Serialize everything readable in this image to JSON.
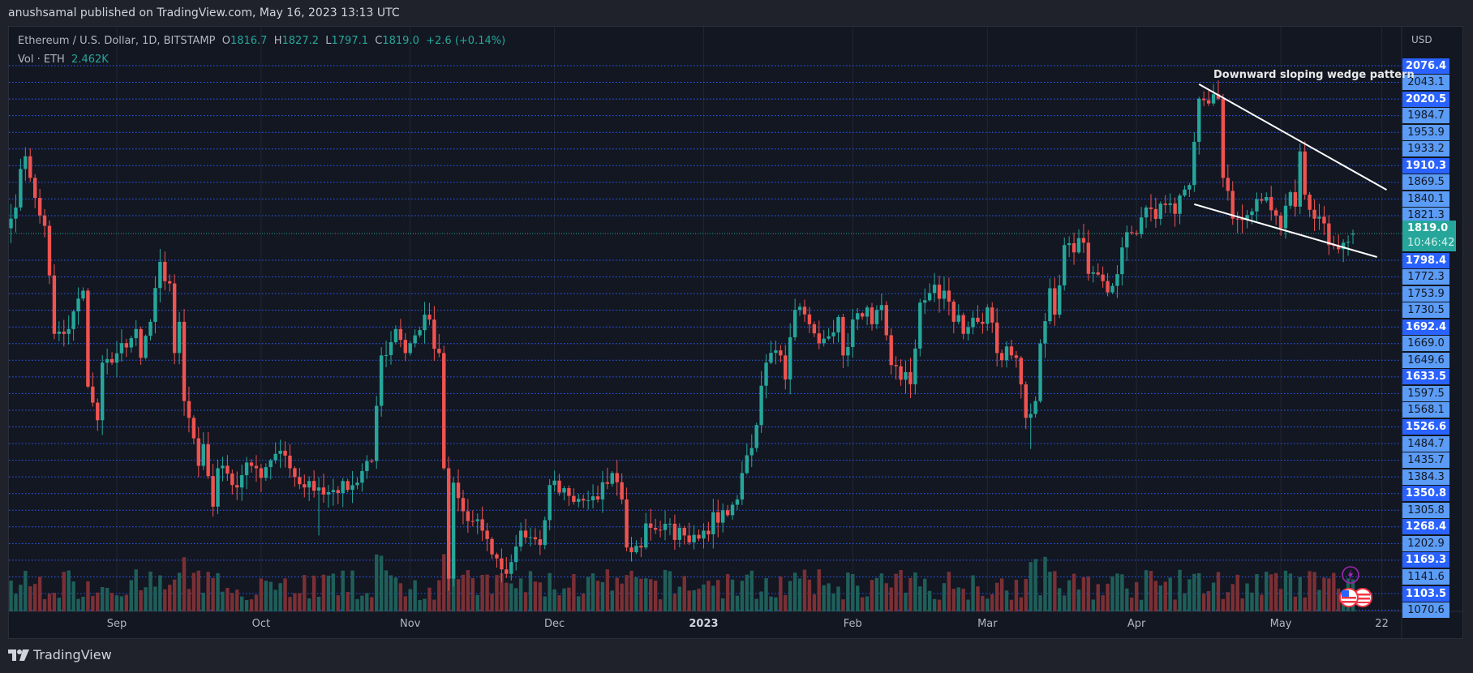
{
  "header": {
    "published": "anushsamal published on TradingView.com, May 16, 2023 13:13 UTC"
  },
  "legend": {
    "symbol": "Ethereum / U.S. Dollar, 1D, BITSTAMP",
    "o_label": "O",
    "o": "1816.7",
    "h_label": "H",
    "h": "1827.2",
    "l_label": "L",
    "l": "1797.1",
    "c_label": "C",
    "c": "1819.0",
    "change": "+2.6 (+0.14%)",
    "vol_label": "Vol · ETH",
    "vol": "2.462K"
  },
  "price_axis": {
    "currency": "USD",
    "labels": [
      {
        "v": "2076.4",
        "bold": true
      },
      {
        "v": "2043.1",
        "bold": false
      },
      {
        "v": "2020.5",
        "bold": true
      },
      {
        "v": "1984.7",
        "bold": false
      },
      {
        "v": "1953.9",
        "bold": false
      },
      {
        "v": "1933.2",
        "bold": false
      },
      {
        "v": "1910.3",
        "bold": true
      },
      {
        "v": "1869.5",
        "bold": false
      },
      {
        "v": "1840.1",
        "bold": false
      },
      {
        "v": "1821.3",
        "bold": false
      },
      {
        "v": "1798.4",
        "bold": true
      },
      {
        "v": "1772.3",
        "bold": false
      },
      {
        "v": "1753.9",
        "bold": false
      },
      {
        "v": "1730.5",
        "bold": false
      },
      {
        "v": "1692.4",
        "bold": true
      },
      {
        "v": "1669.0",
        "bold": false
      },
      {
        "v": "1649.6",
        "bold": false
      },
      {
        "v": "1633.5",
        "bold": true
      },
      {
        "v": "1597.5",
        "bold": false
      },
      {
        "v": "1568.1",
        "bold": false
      },
      {
        "v": "1526.6",
        "bold": true
      },
      {
        "v": "1484.7",
        "bold": false
      },
      {
        "v": "1435.7",
        "bold": false
      },
      {
        "v": "1384.3",
        "bold": false
      },
      {
        "v": "1350.8",
        "bold": true
      },
      {
        "v": "1305.8",
        "bold": false
      },
      {
        "v": "1268.4",
        "bold": true
      },
      {
        "v": "1202.9",
        "bold": false
      },
      {
        "v": "1169.3",
        "bold": true
      },
      {
        "v": "1141.6",
        "bold": false
      },
      {
        "v": "1103.5",
        "bold": true
      },
      {
        "v": "1070.6",
        "bold": false
      }
    ],
    "current_price": "1819.0",
    "countdown": "10:46:42"
  },
  "time_axis": {
    "labels": [
      {
        "t": "Sep",
        "bold": false
      },
      {
        "t": "Oct",
        "bold": false
      },
      {
        "t": "Nov",
        "bold": false
      },
      {
        "t": "Dec",
        "bold": false
      },
      {
        "t": "2023",
        "bold": true
      },
      {
        "t": "Feb",
        "bold": false
      },
      {
        "t": "Mar",
        "bold": false
      },
      {
        "t": "Apr",
        "bold": false
      },
      {
        "t": "May",
        "bold": false
      },
      {
        "t": "22",
        "bold": false
      }
    ]
  },
  "annotation": {
    "text": "Downward sloping wedge pattern"
  },
  "footer": {
    "brand": "TradingView"
  },
  "colors": {
    "up": "#26a69a",
    "down": "#ef5350",
    "level_line": "#2962ff",
    "background": "#131722"
  },
  "icons": [
    "lightning-icon",
    "us-flag-event-icon",
    "us-flag-event-icon"
  ],
  "chart_data": {
    "type": "candlestick",
    "title": "Ethereum / U.S. Dollar, 1D, BITSTAMP",
    "ylabel": "USD",
    "ylim": [
      1070,
      2140
    ],
    "close_keyframes": [
      [
        "2022-08-10",
        1850
      ],
      [
        "2022-08-13",
        1980
      ],
      [
        "2022-08-14",
        1935
      ],
      [
        "2022-08-17",
        1835
      ],
      [
        "2022-08-19",
        1610
      ],
      [
        "2022-08-22",
        1620
      ],
      [
        "2022-08-25",
        1700
      ],
      [
        "2022-08-26",
        1500
      ],
      [
        "2022-08-28",
        1430
      ],
      [
        "2022-08-29",
        1550
      ],
      [
        "2022-08-31",
        1550
      ],
      [
        "2022-09-05",
        1620
      ],
      [
        "2022-09-06",
        1560
      ],
      [
        "2022-09-08",
        1635
      ],
      [
        "2022-09-10",
        1760
      ],
      [
        "2022-09-12",
        1715
      ],
      [
        "2022-09-13",
        1570
      ],
      [
        "2022-09-14",
        1635
      ],
      [
        "2022-09-15",
        1470
      ],
      [
        "2022-09-16",
        1435
      ],
      [
        "2022-09-18",
        1335
      ],
      [
        "2022-09-19",
        1380
      ],
      [
        "2022-09-21",
        1250
      ],
      [
        "2022-09-22",
        1330
      ],
      [
        "2022-09-25",
        1295
      ],
      [
        "2022-09-29",
        1335
      ],
      [
        "2022-10-01",
        1310
      ],
      [
        "2022-10-04",
        1360
      ],
      [
        "2022-10-07",
        1330
      ],
      [
        "2022-10-10",
        1290
      ],
      [
        "2022-10-13",
        1290
      ],
      [
        "2022-10-19",
        1285
      ],
      [
        "2022-10-21",
        1300
      ],
      [
        "2022-10-24",
        1345
      ],
      [
        "2022-10-25",
        1460
      ],
      [
        "2022-10-26",
        1565
      ],
      [
        "2022-10-29",
        1620
      ],
      [
        "2022-10-31",
        1570
      ],
      [
        "2022-11-04",
        1650
      ],
      [
        "2022-11-07",
        1570
      ],
      [
        "2022-11-08",
        1330
      ],
      [
        "2022-11-09",
        1100
      ],
      [
        "2022-11-10",
        1300
      ],
      [
        "2022-11-13",
        1220
      ],
      [
        "2022-11-16",
        1200
      ],
      [
        "2022-11-21",
        1110
      ],
      [
        "2022-11-24",
        1200
      ],
      [
        "2022-11-28",
        1170
      ],
      [
        "2022-11-30",
        1295
      ],
      [
        "2022-12-05",
        1260
      ],
      [
        "2022-12-10",
        1265
      ],
      [
        "2022-12-13",
        1320
      ],
      [
        "2022-12-15",
        1265
      ],
      [
        "2022-12-16",
        1165
      ],
      [
        "2022-12-19",
        1165
      ],
      [
        "2022-12-20",
        1215
      ],
      [
        "2022-12-28",
        1190
      ],
      [
        "2023-01-01",
        1200
      ],
      [
        "2023-01-08",
        1265
      ],
      [
        "2023-01-09",
        1320
      ],
      [
        "2023-01-12",
        1420
      ],
      [
        "2023-01-14",
        1550
      ],
      [
        "2023-01-17",
        1565
      ],
      [
        "2023-01-18",
        1515
      ],
      [
        "2023-01-20",
        1660
      ],
      [
        "2023-01-23",
        1630
      ],
      [
        "2023-01-26",
        1600
      ],
      [
        "2023-01-29",
        1645
      ],
      [
        "2023-01-30",
        1565
      ],
      [
        "2023-02-01",
        1640
      ],
      [
        "2023-02-04",
        1665
      ],
      [
        "2023-02-05",
        1630
      ],
      [
        "2023-02-07",
        1670
      ],
      [
        "2023-02-09",
        1545
      ],
      [
        "2023-02-13",
        1505
      ],
      [
        "2023-02-15",
        1675
      ],
      [
        "2023-02-17",
        1695
      ],
      [
        "2023-02-20",
        1700
      ],
      [
        "2023-02-24",
        1610
      ],
      [
        "2023-02-27",
        1635
      ],
      [
        "2023-03-01",
        1665
      ],
      [
        "2023-03-03",
        1570
      ],
      [
        "2023-03-07",
        1560
      ],
      [
        "2023-03-09",
        1435
      ],
      [
        "2023-03-11",
        1470
      ],
      [
        "2023-03-12",
        1590
      ],
      [
        "2023-03-14",
        1705
      ],
      [
        "2023-03-15",
        1650
      ],
      [
        "2023-03-17",
        1795
      ],
      [
        "2023-03-21",
        1800
      ],
      [
        "2023-03-22",
        1735
      ],
      [
        "2023-03-27",
        1710
      ],
      [
        "2023-03-29",
        1790
      ],
      [
        "2023-03-31",
        1820
      ],
      [
        "2023-04-04",
        1870
      ],
      [
        "2023-04-09",
        1860
      ],
      [
        "2023-04-12",
        1920
      ],
      [
        "2023-04-13",
        2010
      ],
      [
        "2023-04-14",
        2100
      ],
      [
        "2023-04-18",
        2100
      ],
      [
        "2023-04-19",
        1935
      ],
      [
        "2023-04-21",
        1850
      ],
      [
        "2023-04-25",
        1865
      ],
      [
        "2023-04-28",
        1895
      ],
      [
        "2023-05-01",
        1830
      ],
      [
        "2023-05-03",
        1905
      ],
      [
        "2023-05-04",
        1875
      ],
      [
        "2023-05-05",
        1990
      ],
      [
        "2023-05-06",
        1900
      ],
      [
        "2023-05-08",
        1850
      ],
      [
        "2023-05-10",
        1840
      ],
      [
        "2023-05-11",
        1795
      ],
      [
        "2023-05-14",
        1800
      ],
      [
        "2023-05-16",
        1819
      ]
    ],
    "last_candle": {
      "o": 1816.7,
      "h": 1827.2,
      "l": 1797.1,
      "c": 1819.0
    },
    "volume_spikes": [
      "2022-09-15",
      "2022-10-25",
      "2022-10-26",
      "2022-11-08",
      "2022-11-09",
      "2022-11-10",
      "2023-03-10",
      "2023-03-11",
      "2023-03-13"
    ],
    "trendlines": [
      {
        "name": "wedge-upper",
        "from": [
          "2023-04-14",
          2130
        ],
        "to": [
          "2023-05-23",
          1910
        ]
      },
      {
        "name": "wedge-lower",
        "from": [
          "2023-04-13",
          1880
        ],
        "to": [
          "2023-05-21",
          1770
        ]
      }
    ]
  }
}
